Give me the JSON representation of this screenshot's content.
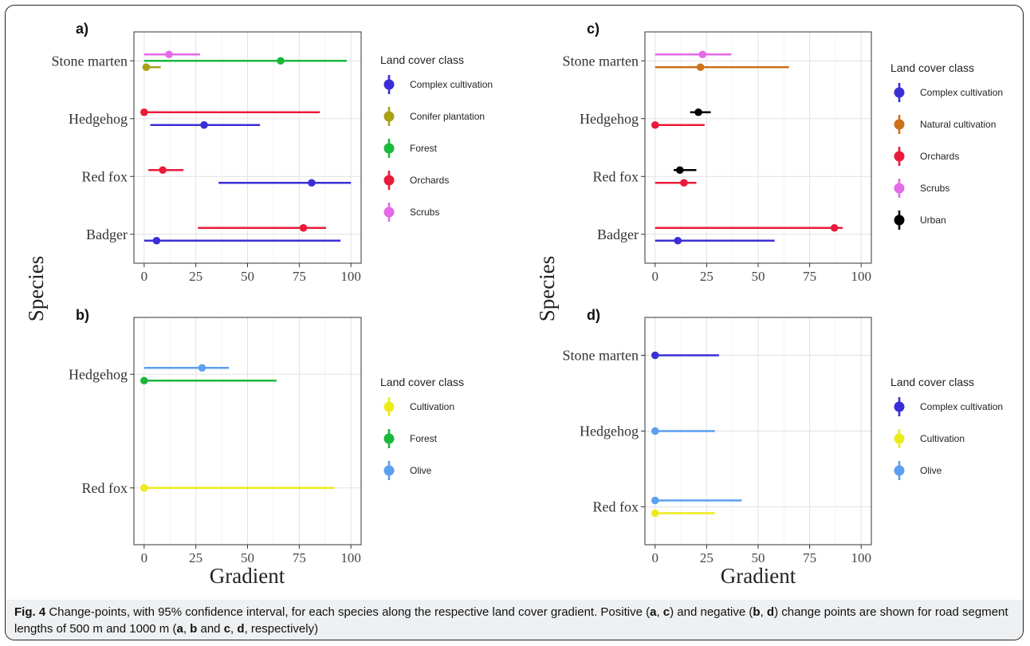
{
  "y_axis_title": "Species",
  "x_axis_title": "Gradient",
  "caption": {
    "label": "Fig. 4",
    "parts": [
      {
        "t": " Change-points, with 95% confidence interval, for each species along the respective land cover gradient. Positive (",
        "b": false
      },
      {
        "t": "a",
        "b": true
      },
      {
        "t": ", ",
        "b": false
      },
      {
        "t": "c",
        "b": true
      },
      {
        "t": ") and negative (",
        "b": false
      },
      {
        "t": "b",
        "b": true
      },
      {
        "t": ", ",
        "b": false
      },
      {
        "t": "d",
        "b": true
      },
      {
        "t": ") change points are shown for road segment lengths of 500 m and 1000 m (",
        "b": false
      },
      {
        "t": "a",
        "b": true
      },
      {
        "t": ", ",
        "b": false
      },
      {
        "t": "b",
        "b": true
      },
      {
        "t": " and ",
        "b": false
      },
      {
        "t": "c",
        "b": true
      },
      {
        "t": ", ",
        "b": false
      },
      {
        "t": "d",
        "b": true
      },
      {
        "t": ", respectively)",
        "b": false
      }
    ]
  },
  "colors": {
    "Complex cultivation": "#3a2fd6",
    "Conifer plantation": "#a8a212",
    "Forest": "#1ab83c",
    "Orchards": "#ea1b3a",
    "Scrubs": "#e46ae8",
    "Natural cultivation": "#cc7218",
    "Urban": "#000000",
    "Cultivation": "#ecec1a",
    "Olive": "#5c9ff0"
  },
  "chart_data": [
    {
      "id": "a",
      "type": "scatter",
      "panel_label": "a)",
      "xlim": [
        0,
        100
      ],
      "xticks": [
        0,
        25,
        50,
        75,
        100
      ],
      "categories": [
        "Stone marten",
        "Hedgehog",
        "Red fox",
        "Badger"
      ],
      "legend_title": "Land cover class",
      "legend": [
        "Complex cultivation",
        "Conifer plantation",
        "Forest",
        "Orchards",
        "Scrubs"
      ],
      "points": [
        {
          "species": "Stone marten",
          "class": "Scrubs",
          "value": 12,
          "lo": 0,
          "hi": 27,
          "offset": 1
        },
        {
          "species": "Stone marten",
          "class": "Forest",
          "value": 66,
          "lo": 0,
          "hi": 98,
          "offset": 0
        },
        {
          "species": "Stone marten",
          "class": "Conifer plantation",
          "value": 1,
          "lo": 0,
          "hi": 8,
          "offset": -1
        },
        {
          "species": "Hedgehog",
          "class": "Orchards",
          "value": 0,
          "lo": 0,
          "hi": 85,
          "offset": 1
        },
        {
          "species": "Hedgehog",
          "class": "Complex cultivation",
          "value": 29,
          "lo": 3,
          "hi": 56,
          "offset": -1
        },
        {
          "species": "Red fox",
          "class": "Orchards",
          "value": 9,
          "lo": 2,
          "hi": 19,
          "offset": 1
        },
        {
          "species": "Red fox",
          "class": "Complex cultivation",
          "value": 81,
          "lo": 36,
          "hi": 100,
          "offset": -1
        },
        {
          "species": "Badger",
          "class": "Orchards",
          "value": 77,
          "lo": 26,
          "hi": 88,
          "offset": 1
        },
        {
          "species": "Badger",
          "class": "Complex cultivation",
          "value": 6,
          "lo": 0,
          "hi": 95,
          "offset": -1
        }
      ]
    },
    {
      "id": "b",
      "type": "scatter",
      "panel_label": "b)",
      "xlim": [
        0,
        100
      ],
      "xticks": [
        0,
        25,
        50,
        75,
        100
      ],
      "categories": [
        "Hedgehog",
        "Red fox"
      ],
      "legend_title": "Land cover class",
      "legend": [
        "Cultivation",
        "Forest",
        "Olive"
      ],
      "points": [
        {
          "species": "Hedgehog",
          "class": "Olive",
          "value": 28,
          "lo": 0,
          "hi": 41,
          "offset": 1
        },
        {
          "species": "Hedgehog",
          "class": "Forest",
          "value": 0,
          "lo": 0,
          "hi": 64,
          "offset": -1
        },
        {
          "species": "Red fox",
          "class": "Cultivation",
          "value": 0,
          "lo": 0,
          "hi": 92,
          "offset": 0
        }
      ]
    },
    {
      "id": "c",
      "type": "scatter",
      "panel_label": "c)",
      "xlim": [
        0,
        100
      ],
      "xticks": [
        0,
        25,
        50,
        75,
        100
      ],
      "categories": [
        "Stone marten",
        "Hedgehog",
        "Red fox",
        "Badger"
      ],
      "legend_title": "Land cover class",
      "legend": [
        "Complex cultivation",
        "Natural cultivation",
        "Orchards",
        "Scrubs",
        "Urban"
      ],
      "points": [
        {
          "species": "Stone marten",
          "class": "Scrubs",
          "value": 23,
          "lo": 0,
          "hi": 37,
          "offset": 1
        },
        {
          "species": "Stone marten",
          "class": "Natural cultivation",
          "value": 22,
          "lo": 0,
          "hi": 65,
          "offset": -1
        },
        {
          "species": "Hedgehog",
          "class": "Urban",
          "value": 21,
          "lo": 17,
          "hi": 27,
          "offset": 1
        },
        {
          "species": "Hedgehog",
          "class": "Orchards",
          "value": 0,
          "lo": 0,
          "hi": 24,
          "offset": -1
        },
        {
          "species": "Red fox",
          "class": "Urban",
          "value": 12,
          "lo": 9,
          "hi": 20,
          "offset": 1
        },
        {
          "species": "Red fox",
          "class": "Orchards",
          "value": 14,
          "lo": 0,
          "hi": 20,
          "offset": -1
        },
        {
          "species": "Badger",
          "class": "Orchards",
          "value": 87,
          "lo": 0,
          "hi": 91,
          "offset": 1
        },
        {
          "species": "Badger",
          "class": "Complex cultivation",
          "value": 11,
          "lo": 0,
          "hi": 58,
          "offset": -1
        }
      ]
    },
    {
      "id": "d",
      "type": "scatter",
      "panel_label": "d)",
      "xlim": [
        0,
        100
      ],
      "xticks": [
        0,
        25,
        50,
        75,
        100
      ],
      "categories": [
        "Stone marten",
        "Hedgehog",
        "Red fox"
      ],
      "legend_title": "Land cover class",
      "legend": [
        "Complex cultivation",
        "Cultivation",
        "Olive"
      ],
      "points": [
        {
          "species": "Stone marten",
          "class": "Complex cultivation",
          "value": 0,
          "lo": 0,
          "hi": 31,
          "offset": 0
        },
        {
          "species": "Hedgehog",
          "class": "Olive",
          "value": 0,
          "lo": 0,
          "hi": 29,
          "offset": 0
        },
        {
          "species": "Red fox",
          "class": "Olive",
          "value": 0,
          "lo": 0,
          "hi": 42,
          "offset": 1
        },
        {
          "species": "Red fox",
          "class": "Cultivation",
          "value": 0,
          "lo": 0,
          "hi": 29,
          "offset": -1
        }
      ]
    }
  ]
}
